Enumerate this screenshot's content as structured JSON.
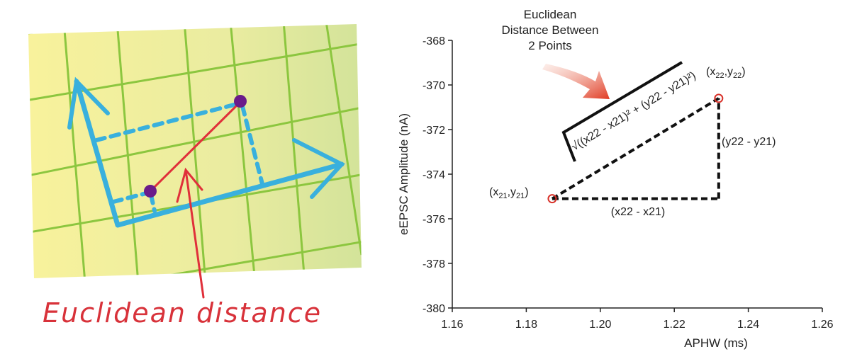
{
  "illustration": {
    "caption": "Euclidean distance",
    "colors": {
      "grid": "#8cc63f",
      "paper_light": "#f7f19a",
      "paper_dark": "#d7e59a",
      "axes": "#39b0dd",
      "points": "#6a1b8a",
      "distance": "#e0303a"
    }
  },
  "chart_data": {
    "type": "scatter",
    "xlabel": "APHW (ms)",
    "ylabel": "eEPSC Amplitude (nA)",
    "xlim": [
      1.16,
      1.26
    ],
    "ylim": [
      -380,
      -368
    ],
    "xticks": [
      "1.16",
      "1.18",
      "1.20",
      "1.22",
      "1.24",
      "1.26"
    ],
    "yticks": [
      "-368",
      "-370",
      "-372",
      "-374",
      "-376",
      "-378",
      "-380"
    ],
    "grid": false,
    "points": [
      {
        "x": 1.187,
        "y": -375.1,
        "label_base": "x21,y21"
      },
      {
        "x": 1.232,
        "y": -370.6,
        "label_base": "x22,y22"
      }
    ],
    "annotations": {
      "title_lines": [
        "Euclidean",
        "Distance Between",
        "2 Points"
      ],
      "dx_label": "(x22 - x21)",
      "dy_label": "(y22 - y21)",
      "formula": "√((x22 - x21)² + (y22 - y21)²)"
    },
    "colors": {
      "point": "#d8322a",
      "dashed": "#111111",
      "arrow": "#e04a2a"
    }
  }
}
